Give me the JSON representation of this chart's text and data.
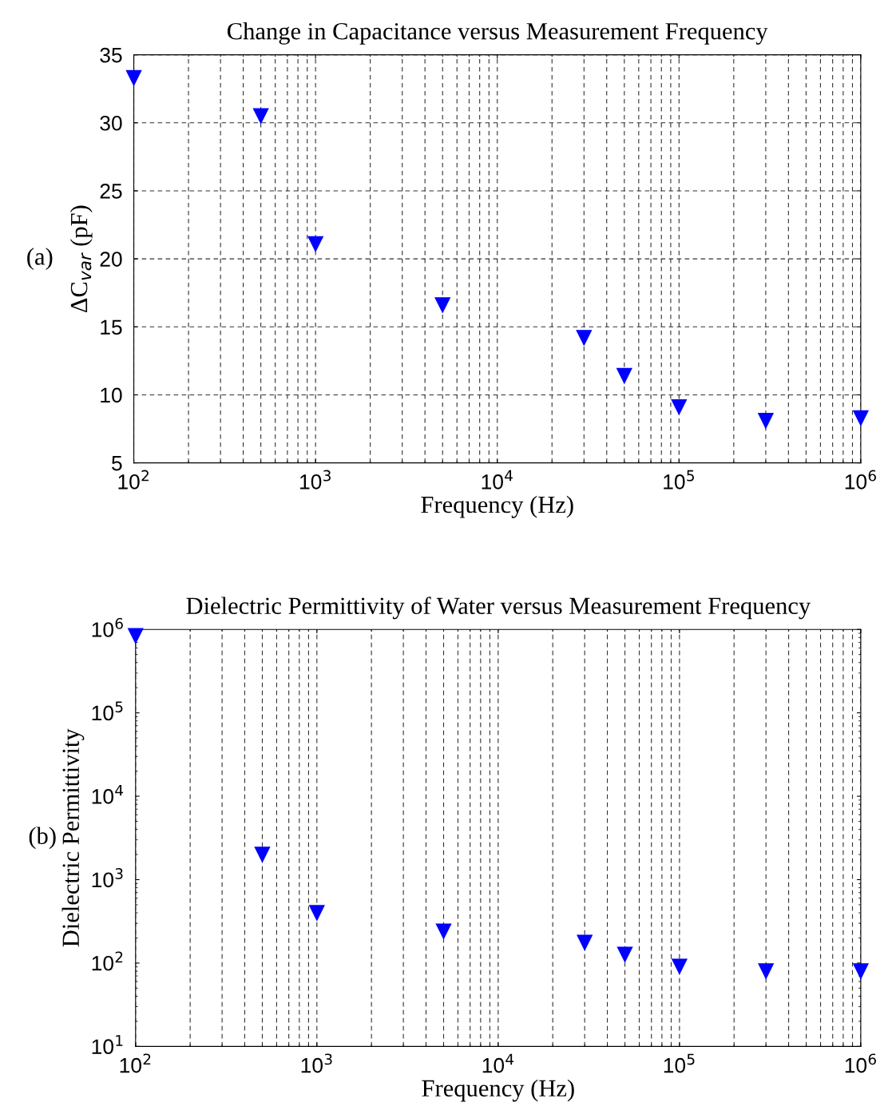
{
  "chart_data": [
    {
      "type": "scatter",
      "title": "Change in Capacitance versus Measurement Frequency",
      "xlabel": "Frequency (Hz)",
      "ylabel": "ΔC$_{var}$ (pF)",
      "annotations": [
        "(a)"
      ],
      "log": "x",
      "grid": true,
      "marker": "triangle",
      "legend": false,
      "x": [
        100,
        500,
        1000,
        5000,
        30000,
        50000,
        100000,
        300000,
        1000000
      ],
      "series": [
        {
          "color": "#0000ff",
          "values": [
            33.3,
            30.5,
            21.1,
            16.6,
            14.2,
            11.4,
            9.1,
            8.1,
            8.3
          ]
        }
      ],
      "xlim": [
        100,
        1000000
      ],
      "xticks": [
        {
          "value": 100,
          "label": "10$^{2}$"
        },
        {
          "value": 1000,
          "label": "10$^{3}$"
        },
        {
          "value": 10000,
          "label": "10$^{4}$"
        },
        {
          "value": 100000,
          "label": "10$^{5}$"
        },
        {
          "value": 1000000,
          "label": "10$^{6}$"
        }
      ],
      "ylim": [
        5,
        35
      ],
      "yticks": [
        5,
        10,
        15,
        20,
        25,
        30,
        35
      ]
    },
    {
      "type": "scatter",
      "title": "Dielectric Permittivity of Water versus Measurement Frequency",
      "xlabel": "Frequency (Hz)",
      "ylabel": "Dielectric Permittivity",
      "annotations": [
        "(b)"
      ],
      "log": "xy",
      "grid": "x",
      "marker": "triangle",
      "legend": false,
      "x": [
        100,
        500,
        1000,
        5000,
        30000,
        50000,
        100000,
        300000,
        1000000
      ],
      "series": [
        {
          "color": "#0000ff",
          "values": [
            840000,
            2000,
            400,
            240,
            176,
            127,
            91,
            80,
            80
          ]
        }
      ],
      "xlim": [
        100,
        1000000
      ],
      "xticks": [
        {
          "value": 100,
          "label": "10$^{2}$"
        },
        {
          "value": 1000,
          "label": "10$^{3}$"
        },
        {
          "value": 10000,
          "label": "10$^{4}$"
        },
        {
          "value": 100000,
          "label": "10$^{5}$"
        },
        {
          "value": 1000000,
          "label": "10$^{6}$"
        }
      ],
      "ylim": [
        10,
        1000000
      ],
      "yticks": [
        {
          "value": 10,
          "label": "10$^{1}$"
        },
        {
          "value": 100,
          "label": "10$^{2}$"
        },
        {
          "value": 1000,
          "label": "10$^{3}$"
        },
        {
          "value": 10000,
          "label": "10$^{4}$"
        },
        {
          "value": 100000,
          "label": "10$^{5}$"
        },
        {
          "value": 1000000,
          "label": "10$^{6}$"
        }
      ]
    }
  ]
}
